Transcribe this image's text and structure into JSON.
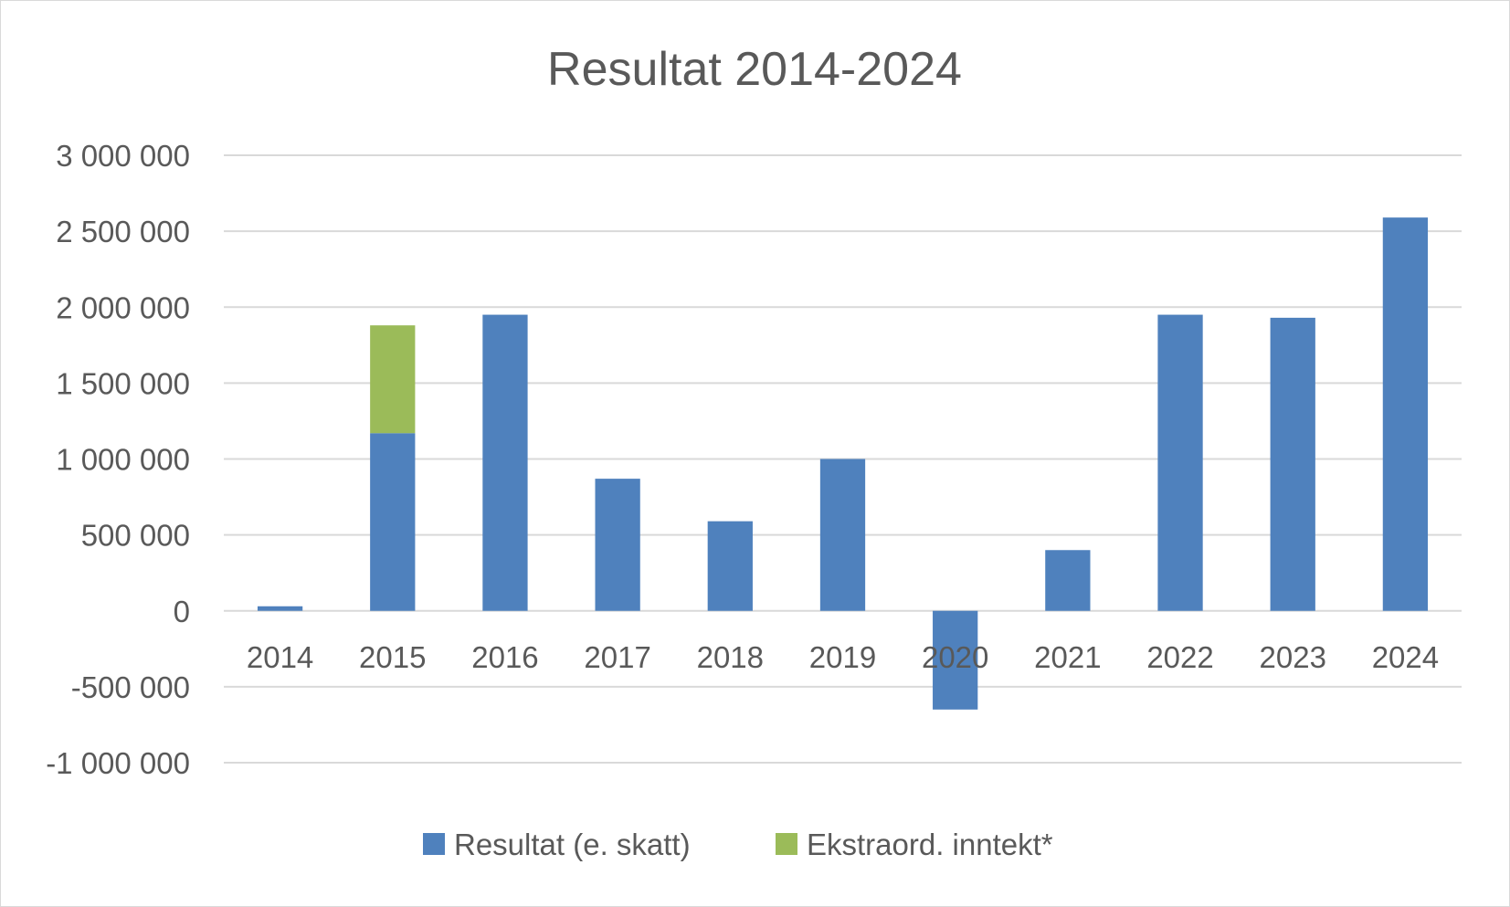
{
  "chart_data": {
    "type": "bar",
    "stacked": true,
    "title": "Resultat 2014-2024",
    "xlabel": "",
    "ylabel": "",
    "categories": [
      "2014",
      "2015",
      "2016",
      "2017",
      "2018",
      "2019",
      "2020",
      "2021",
      "2022",
      "2023",
      "2024"
    ],
    "series": [
      {
        "name": "Resultat (e. skatt)",
        "color": "#4f81bd",
        "values": [
          30000,
          1170000,
          1950000,
          870000,
          590000,
          1000000,
          -650000,
          400000,
          1950000,
          1930000,
          2590000
        ]
      },
      {
        "name": "Ekstraord. inntekt*",
        "color": "#9bbb59",
        "values": [
          0,
          710000,
          0,
          0,
          0,
          0,
          0,
          0,
          0,
          0,
          0
        ]
      }
    ],
    "ylim": [
      -1000000,
      3000000
    ],
    "yticks": [
      {
        "value": 3000000,
        "label": "3 000 000"
      },
      {
        "value": 2500000,
        "label": "2 500 000"
      },
      {
        "value": 2000000,
        "label": "2 000 000"
      },
      {
        "value": 1500000,
        "label": "1 500 000"
      },
      {
        "value": 1000000,
        "label": "1 000 000"
      },
      {
        "value": 500000,
        "label": "500 000"
      },
      {
        "value": 0,
        "label": "0"
      },
      {
        "value": -500000,
        "label": "-500 000"
      },
      {
        "value": -1000000,
        "label": "-1 000 000"
      }
    ],
    "grid": true,
    "legend_position": "bottom"
  }
}
